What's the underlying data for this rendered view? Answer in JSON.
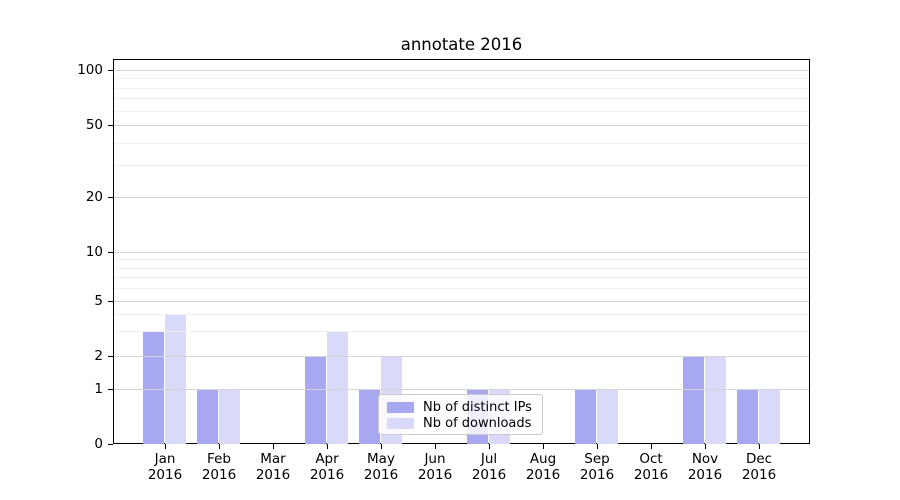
{
  "figure": {
    "title": "annotate 2016"
  },
  "axes": {
    "x_months": [
      "Jan",
      "Feb",
      "Mar",
      "Apr",
      "May",
      "Jun",
      "Jul",
      "Aug",
      "Sep",
      "Oct",
      "Nov",
      "Dec"
    ],
    "x_year": "2016",
    "y_tick_labels": [
      "0",
      "1",
      "2",
      "5",
      "10",
      "20",
      "50",
      "100"
    ]
  },
  "colors": {
    "distinct_ips_bar": "#a8a8f2",
    "downloads_bar": "#d9d9f9",
    "grid_major": "#d4d4d4",
    "grid_minor": "#efefef",
    "axis": "#000000",
    "legend_border": "#cbcbcb"
  },
  "chart_data": {
    "type": "bar",
    "title": "annotate 2016",
    "categories": [
      "Jan 2016",
      "Feb 2016",
      "Mar 2016",
      "Apr 2016",
      "May 2016",
      "Jun 2016",
      "Jul 2016",
      "Aug 2016",
      "Sep 2016",
      "Oct 2016",
      "Nov 2016",
      "Dec 2016"
    ],
    "series": [
      {
        "name": "Nb of distinct IPs",
        "key": "distinct-ips",
        "color": "#a8a8f2",
        "values": [
          3,
          1,
          0,
          2,
          1,
          0,
          1,
          0,
          1,
          0,
          2,
          1
        ]
      },
      {
        "name": "Nb of downloads",
        "key": "downloads",
        "color": "#d9d9f9",
        "values": [
          4,
          1,
          0,
          3,
          2,
          0,
          1,
          0,
          1,
          0,
          2,
          1
        ]
      }
    ],
    "xlabel": "",
    "ylabel": "",
    "yscale": "symlog",
    "ylim": [
      0,
      115
    ],
    "y_ticks": [
      0,
      1,
      2,
      5,
      10,
      20,
      50,
      100
    ],
    "y_minor_ticks": [
      3,
      4,
      6,
      7,
      8,
      9,
      30,
      40,
      60,
      70,
      80,
      90
    ],
    "grid": "horizontal, drawn above bars",
    "legend_position": "lower center"
  }
}
